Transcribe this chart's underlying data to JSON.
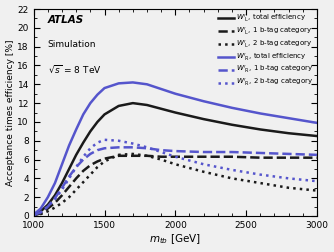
{
  "xlabel": "$m_{tb}$ [GeV]",
  "ylabel": "Acceptance times efficiency [%]",
  "xlim": [
    1000,
    3000
  ],
  "ylim": [
    0,
    22
  ],
  "yticks": [
    0,
    2,
    4,
    6,
    8,
    10,
    12,
    14,
    16,
    18,
    20,
    22
  ],
  "xticks": [
    1000,
    1500,
    2000,
    2500,
    3000
  ],
  "x": [
    1000,
    1050,
    1100,
    1150,
    1200,
    1250,
    1300,
    1350,
    1400,
    1450,
    1500,
    1600,
    1700,
    1800,
    1900,
    2000,
    2200,
    2400,
    2600,
    2800,
    3000
  ],
  "WL_total": [
    0.1,
    0.5,
    1.2,
    2.2,
    3.5,
    5.0,
    6.5,
    7.8,
    9.0,
    10.0,
    10.8,
    11.7,
    12.0,
    11.8,
    11.4,
    11.0,
    10.3,
    9.7,
    9.2,
    8.8,
    8.5
  ],
  "WL_1btag": [
    0.05,
    0.3,
    0.8,
    1.4,
    2.2,
    3.1,
    4.0,
    4.8,
    5.4,
    5.8,
    6.1,
    6.4,
    6.4,
    6.4,
    6.3,
    6.3,
    6.3,
    6.3,
    6.2,
    6.2,
    6.2
  ],
  "WL_2btag": [
    0.05,
    0.2,
    0.5,
    0.9,
    1.4,
    2.0,
    2.8,
    3.6,
    4.4,
    5.2,
    5.8,
    6.5,
    6.6,
    6.4,
    6.0,
    5.5,
    4.7,
    4.0,
    3.5,
    3.0,
    2.7
  ],
  "WR_total": [
    0.15,
    0.8,
    2.0,
    3.5,
    5.5,
    7.5,
    9.2,
    10.8,
    12.0,
    12.9,
    13.6,
    14.1,
    14.2,
    14.0,
    13.5,
    13.0,
    12.2,
    11.5,
    10.9,
    10.4,
    9.9
  ],
  "WR_1btag": [
    0.08,
    0.4,
    1.0,
    1.9,
    3.0,
    4.2,
    5.2,
    6.0,
    6.6,
    7.0,
    7.2,
    7.3,
    7.3,
    7.2,
    7.0,
    6.9,
    6.8,
    6.8,
    6.7,
    6.6,
    6.5
  ],
  "WR_2btag": [
    0.07,
    0.4,
    1.0,
    1.8,
    2.8,
    4.0,
    5.2,
    6.3,
    7.2,
    7.8,
    8.1,
    8.0,
    7.7,
    7.3,
    6.8,
    6.3,
    5.5,
    4.9,
    4.4,
    4.0,
    3.7
  ],
  "black": "#1a1a1a",
  "blue": "#5555cc",
  "lw_solid": 1.8,
  "lw_dashed": 1.8,
  "lw_dotted": 1.8,
  "bg_color": "#f0f0f0"
}
